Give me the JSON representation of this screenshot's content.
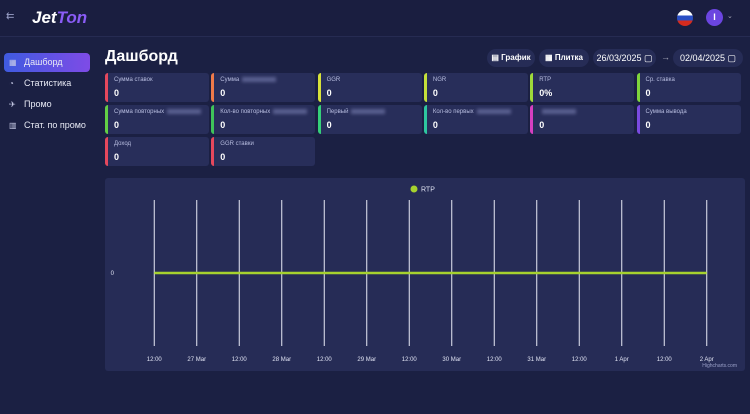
{
  "header": {
    "logo": [
      "Jet",
      "Ton"
    ],
    "avatar": "I"
  },
  "sidebar": {
    "items": [
      "Дашборд",
      "Статистика",
      "Промо",
      "Стат. по промо"
    ],
    "active": 0
  },
  "page": {
    "title": "Дашборд",
    "buttons": [
      "График",
      "Плитка"
    ],
    "date_from": "26/03/2025",
    "date_to": "02/04/2025"
  },
  "cards": [
    {
      "label": "Сумма ставок",
      "value": "0",
      "color": "#e5485d"
    },
    {
      "label": "Сумма",
      "value": "0",
      "color": "#ef7a4a",
      "blur": true
    },
    {
      "label": "GGR",
      "value": "0",
      "color": "#d8e23a"
    },
    {
      "label": "NGR",
      "value": "0",
      "color": "#c4e03a"
    },
    {
      "label": "RTP",
      "value": "0%",
      "color": "#9ed93a"
    },
    {
      "label": "Ср. ставка",
      "value": "0",
      "color": "#7fd43c"
    },
    {
      "label": "Сумма повторных",
      "value": "0",
      "color": "#62cf45",
      "blur": true
    },
    {
      "label": "Кол-во повторных",
      "value": "0",
      "color": "#3fc45a",
      "blur": true
    },
    {
      "label": "Первый",
      "value": "0",
      "color": "#35d07a",
      "blur": true
    },
    {
      "label": "Кол-во первых",
      "value": "0",
      "color": "#2ec7a0",
      "blur": true
    },
    {
      "label": "",
      "value": "0",
      "color": "#d63fc0",
      "blur": true
    },
    {
      "label": "Сумма вывода",
      "value": "0",
      "color": "#7a4ae0"
    },
    {
      "label": "Доход",
      "value": "0",
      "color": "#e5485d"
    },
    {
      "label": "GGR ставки",
      "value": "0",
      "color": "#e5485d"
    }
  ],
  "chart_data": {
    "type": "line",
    "categories": [
      "12:00",
      "27 Mar",
      "12:00",
      "28 Mar",
      "12:00",
      "29 Mar",
      "12:00",
      "30 Mar",
      "12:00",
      "31 Mar",
      "12:00",
      "1 Apr",
      "12:00",
      "2 Apr"
    ],
    "series": [
      {
        "name": "RTP",
        "color": "#a6d22e",
        "values": [
          0,
          0,
          0,
          0,
          0,
          0,
          0,
          0,
          0,
          0,
          0,
          0,
          0,
          0
        ]
      }
    ],
    "ylim": [
      -1,
      1
    ],
    "yticks": [
      0
    ],
    "grid": true,
    "credits": "Highcharts.com"
  }
}
